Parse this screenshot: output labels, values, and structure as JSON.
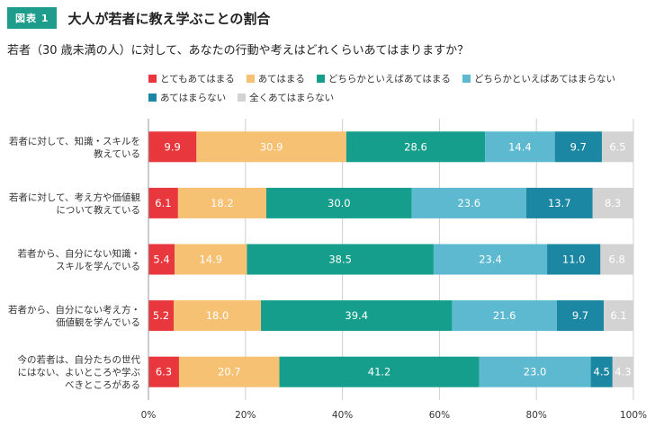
{
  "figure": {
    "badge": "図表 1",
    "title": "大人が若者に教え学ぶことの割合",
    "question": "若者（30 歳未満の人）に対して、あなたの行動や考えはどれくらいあてはまりますか？"
  },
  "chart_data": {
    "type": "bar",
    "orientation": "horizontal",
    "stacked": true,
    "xlim": [
      0,
      100
    ],
    "x_ticks": [
      "0%",
      "20%",
      "40%",
      "60%",
      "80%",
      "100%"
    ],
    "grid": true,
    "legend_position": "top",
    "categories": [
      [
        "若者に対して、知識・スキルを",
        "教えている"
      ],
      [
        "若者に対して、考え方や価値観",
        "について教えている"
      ],
      [
        "若者から、自分にない知識・",
        "スキルを学んでいる"
      ],
      [
        "若者から、自分にない考え方・",
        "価値観を学んでいる"
      ],
      [
        "今の若者は、自分たちの世代",
        "にはない、よいところや学ぶ",
        "べきところがある"
      ]
    ],
    "series": [
      {
        "name": "とてもあてはまる",
        "color": "#e8383d",
        "values": [
          9.9,
          6.1,
          5.4,
          5.2,
          6.3
        ]
      },
      {
        "name": "あてはまる",
        "color": "#f7c173",
        "values": [
          30.9,
          18.2,
          14.9,
          18.0,
          20.7
        ]
      },
      {
        "name": "どちらかといえばあてはまる",
        "color": "#169e8c",
        "values": [
          28.6,
          30.0,
          38.5,
          39.4,
          41.2
        ]
      },
      {
        "name": "どちらかといえばあてはまらない",
        "color": "#5cb9d0",
        "values": [
          14.4,
          23.6,
          23.4,
          21.6,
          23.0
        ]
      },
      {
        "name": "あてはまらない",
        "color": "#1c87a3",
        "values": [
          9.7,
          13.7,
          11.0,
          9.7,
          4.5
        ]
      },
      {
        "name": "全くあてはまらない",
        "color": "#d3d3d3",
        "values": [
          6.5,
          8.3,
          6.8,
          6.1,
          4.3
        ]
      }
    ]
  }
}
